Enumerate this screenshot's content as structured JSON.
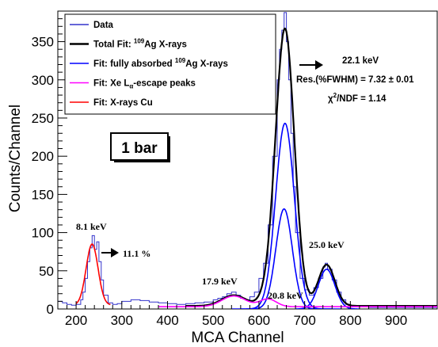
{
  "chart_data": {
    "type": "line",
    "xlabel": "MCA Channel",
    "ylabel": "Counts/Channel",
    "xlim": [
      160,
      990
    ],
    "ylim": [
      0,
      390
    ],
    "x_ticks": [
      200,
      300,
      400,
      500,
      600,
      700,
      800,
      900
    ],
    "y_ticks": [
      0,
      50,
      100,
      150,
      200,
      250,
      300,
      350
    ],
    "grid": false,
    "legend_position": "top-left",
    "legend": [
      {
        "label": "Data",
        "color": "#3333cc"
      },
      {
        "label_pre": "Total Fit: ",
        "label_sup": "109",
        "label_post": "Ag X-rays",
        "color": "#000000"
      },
      {
        "label_pre": "Fit: fully absorbed ",
        "label_sup": "109",
        "label_post": "Ag X-rays",
        "color": "#0000ff"
      },
      {
        "label_pre": "Fit: Xe L",
        "label_sub": "α",
        "label_post": "-escape peaks",
        "color": "#ff00ff"
      },
      {
        "label": "Fit: X-rays Cu",
        "color": "#ff0000"
      }
    ],
    "series": [
      {
        "name": "Data",
        "color": "#3333cc",
        "x": [
          160,
          170,
          180,
          190,
          200,
          210,
          215,
          220,
          225,
          230,
          235,
          240,
          245,
          250,
          255,
          260,
          270,
          280,
          290,
          300,
          320,
          340,
          360,
          380,
          400,
          420,
          440,
          460,
          480,
          500,
          510,
          520,
          530,
          540,
          550,
          560,
          570,
          580,
          590,
          600,
          610,
          620,
          630,
          640,
          645,
          650,
          655,
          660,
          665,
          670,
          675,
          680,
          690,
          700,
          710,
          720,
          730,
          740,
          745,
          750,
          760,
          770,
          780,
          790,
          800,
          820,
          840,
          860,
          880,
          900,
          920,
          940,
          960,
          990
        ],
        "y": [
          10,
          8,
          6,
          5,
          6,
          12,
          22,
          40,
          62,
          80,
          96,
          78,
          88,
          62,
          38,
          18,
          8,
          6,
          7,
          10,
          12,
          11,
          9,
          8,
          7,
          6,
          7,
          8,
          9,
          12,
          14,
          16,
          20,
          22,
          18,
          14,
          12,
          16,
          22,
          40,
          60,
          110,
          200,
          300,
          340,
          365,
          388,
          350,
          300,
          230,
          160,
          100,
          40,
          25,
          18,
          28,
          40,
          55,
          60,
          52,
          38,
          22,
          12,
          6,
          4,
          3,
          2,
          2,
          2,
          2,
          2,
          2,
          2,
          2
        ]
      },
      {
        "name": "Total Fit: 109Ag X-rays",
        "color": "#000000",
        "peaks": [
          {
            "mu": 657,
            "sigma": 20.5,
            "amp": 362
          },
          {
            "mu": 748,
            "sigma": 18,
            "amp": 54
          },
          {
            "mu": 545,
            "sigma": 26,
            "amp": 14
          },
          {
            "mu": 620,
            "sigma": 18,
            "amp": 10
          }
        ],
        "baseline": 4,
        "x_range": [
          440,
          990
        ]
      },
      {
        "name": "Fit: fully absorbed 109Ag X-rays (1)",
        "color": "#0000ff",
        "peaks": [
          {
            "mu": 657,
            "sigma": 20.5,
            "amp": 243
          }
        ],
        "baseline": 0,
        "x_range": [
          540,
          780
        ]
      },
      {
        "name": "Fit: fully absorbed 109Ag X-rays (2)",
        "color": "#0000ff",
        "peaks": [
          {
            "mu": 655,
            "sigma": 18,
            "amp": 131
          }
        ],
        "baseline": 0,
        "x_range": [
          560,
          760
        ]
      },
      {
        "name": "Fit: fully absorbed 109Ag X-rays (3)",
        "color": "#0000ff",
        "peaks": [
          {
            "mu": 748,
            "sigma": 18,
            "amp": 52
          }
        ],
        "baseline": 0,
        "x_range": [
          680,
          820
        ]
      },
      {
        "name": "Fit: Xe Lα-escape peaks",
        "color": "#ff00ff",
        "peaks": [
          {
            "mu": 545,
            "sigma": 26,
            "amp": 14
          },
          {
            "mu": 620,
            "sigma": 18,
            "amp": 10
          }
        ],
        "baseline": 3,
        "x_range": [
          380,
          990
        ]
      },
      {
        "name": "Fit: X-rays Cu",
        "color": "#ff0000",
        "peaks": [
          {
            "mu": 235,
            "sigma": 13,
            "amp": 80
          }
        ],
        "baseline": 5,
        "x_range": [
          200,
          275
        ]
      }
    ],
    "annotations": {
      "pressure": "1 bar",
      "main_peak_energy": "22.1 keV",
      "resolution": "Res.(%FWHM) = 7.32 ± 0.01",
      "chi2_sym": "χ",
      "chi2_sup": "2",
      "chi2_rest": "/NDF = 1.14",
      "cu_peak_energy": "8.1 keV",
      "cu_resolution": "11.1 %",
      "peak_25": "25.0 keV",
      "peak_17_9": "17.9 keV",
      "peak_20_8": "20.8 keV"
    }
  }
}
